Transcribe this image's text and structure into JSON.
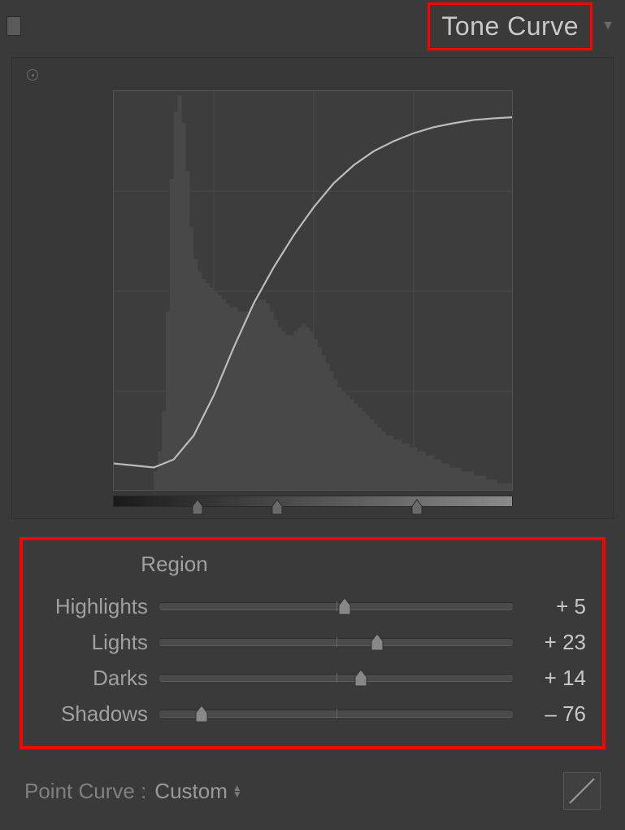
{
  "panel": {
    "title": "Tone Curve",
    "background_color": "#3a3a3a",
    "border_color": "#2f2f2f",
    "text_color": "#b0b0b0",
    "highlight_box_color": "#ff0000"
  },
  "curve": {
    "box_size": 492,
    "grid_divisions": 4,
    "grid_color": "#4a4a4a",
    "curve_color": "#bcbcbc",
    "curve_width": 2.2,
    "histogram_fill": "#484848",
    "curve_points": [
      [
        0,
        0.07
      ],
      [
        0.05,
        0.065
      ],
      [
        0.1,
        0.06
      ],
      [
        0.15,
        0.08
      ],
      [
        0.2,
        0.14
      ],
      [
        0.25,
        0.24
      ],
      [
        0.3,
        0.36
      ],
      [
        0.35,
        0.47
      ],
      [
        0.4,
        0.56
      ],
      [
        0.45,
        0.64
      ],
      [
        0.5,
        0.71
      ],
      [
        0.55,
        0.77
      ],
      [
        0.6,
        0.815
      ],
      [
        0.65,
        0.85
      ],
      [
        0.7,
        0.875
      ],
      [
        0.75,
        0.895
      ],
      [
        0.8,
        0.91
      ],
      [
        0.85,
        0.92
      ],
      [
        0.9,
        0.928
      ],
      [
        0.95,
        0.932
      ],
      [
        1.0,
        0.935
      ]
    ],
    "histogram_bins": [
      0.0,
      0.0,
      0.0,
      0.0,
      0.0,
      0.0,
      0.0,
      0.0,
      0.0,
      0.0,
      0.05,
      0.1,
      0.2,
      0.45,
      0.78,
      0.95,
      0.99,
      0.92,
      0.8,
      0.66,
      0.58,
      0.55,
      0.53,
      0.52,
      0.51,
      0.5,
      0.49,
      0.48,
      0.47,
      0.46,
      0.46,
      0.45,
      0.45,
      0.45,
      0.46,
      0.47,
      0.48,
      0.48,
      0.47,
      0.45,
      0.43,
      0.41,
      0.4,
      0.39,
      0.39,
      0.4,
      0.41,
      0.42,
      0.41,
      0.4,
      0.38,
      0.36,
      0.34,
      0.32,
      0.3,
      0.28,
      0.26,
      0.25,
      0.24,
      0.23,
      0.22,
      0.21,
      0.2,
      0.19,
      0.18,
      0.17,
      0.16,
      0.15,
      0.14,
      0.14,
      0.13,
      0.13,
      0.12,
      0.12,
      0.11,
      0.11,
      0.1,
      0.1,
      0.09,
      0.09,
      0.08,
      0.08,
      0.07,
      0.07,
      0.06,
      0.06,
      0.06,
      0.05,
      0.05,
      0.05,
      0.04,
      0.04,
      0.04,
      0.03,
      0.03,
      0.03,
      0.02,
      0.02,
      0.02,
      0.02
    ],
    "split_positions": [
      0.21,
      0.41,
      0.76
    ]
  },
  "region": {
    "title": "Region",
    "sliders": [
      {
        "name": "highlights",
        "label": "Highlights",
        "value": 5,
        "display": "+ 5",
        "min": -100,
        "max": 100
      },
      {
        "name": "lights",
        "label": "Lights",
        "value": 23,
        "display": "+ 23",
        "min": -100,
        "max": 100
      },
      {
        "name": "darks",
        "label": "Darks",
        "value": 14,
        "display": "+ 14",
        "min": -100,
        "max": 100
      },
      {
        "name": "shadows",
        "label": "Shadows",
        "value": -76,
        "display": "– 76",
        "min": -100,
        "max": 100
      }
    ],
    "track_color": "#4a4a4a",
    "thumb_color": "#888888"
  },
  "footer": {
    "label": "Point Curve :",
    "selected": "Custom",
    "icon_line_color": "#9a9a9a"
  }
}
